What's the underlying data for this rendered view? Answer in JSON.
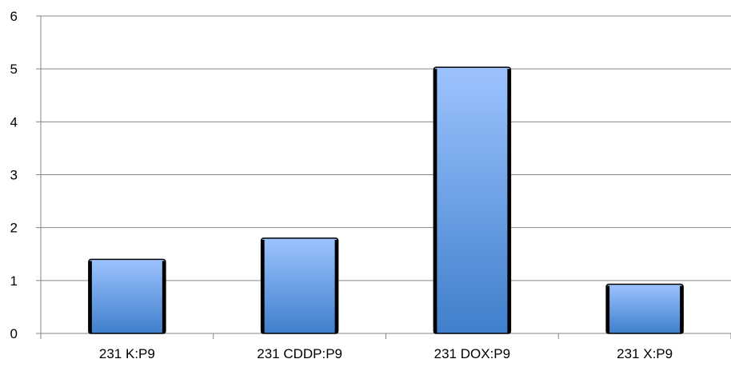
{
  "chart_data": {
    "type": "bar",
    "title": "",
    "xlabel": "",
    "ylabel": "",
    "categories": [
      "231 K:P9",
      "231 CDDP:P9",
      "231 DOX:P9",
      "231 X:P9"
    ],
    "values": [
      1.4,
      1.8,
      5.03,
      0.93
    ],
    "ylim": [
      0,
      6
    ],
    "yticks": [
      "0",
      "1",
      "2",
      "3",
      "4",
      "5",
      "6"
    ],
    "grid": true,
    "legend": "none",
    "colors": {
      "bar_top": "#9DC3FF",
      "bar_bottom": "#3F7FCB",
      "bar_outline": "#000000",
      "grid": "#868686",
      "axis": "#868686"
    }
  }
}
